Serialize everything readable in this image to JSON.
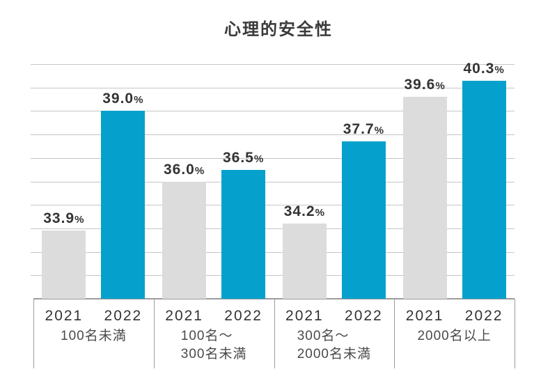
{
  "title": "心理的安全性",
  "colors": {
    "bar_2021": "#dcdcdc",
    "bar_2022": "#05a1cc",
    "gridline": "#c5c5c5",
    "axis": "#9b9b9b",
    "text": "#333333"
  },
  "chart_data": {
    "type": "bar",
    "title": "心理的安全性",
    "series_labels": [
      "2021",
      "2022"
    ],
    "groups": [
      {
        "label_lines": [
          "100名未満"
        ],
        "values": [
          33.9,
          39.0
        ]
      },
      {
        "label_lines": [
          "100名～",
          "300名未満"
        ],
        "values": [
          36.0,
          36.5
        ]
      },
      {
        "label_lines": [
          "300名～",
          "2000名未満"
        ],
        "values": [
          34.2,
          37.7
        ]
      },
      {
        "label_lines": [
          "2000名以上"
        ],
        "values": [
          39.6,
          40.3
        ]
      }
    ],
    "value_suffix": "%",
    "ylim": [
      31,
      41
    ],
    "gridline_step": 1,
    "grid": true,
    "legend_position": "none",
    "xlabel": "",
    "ylabel": ""
  }
}
